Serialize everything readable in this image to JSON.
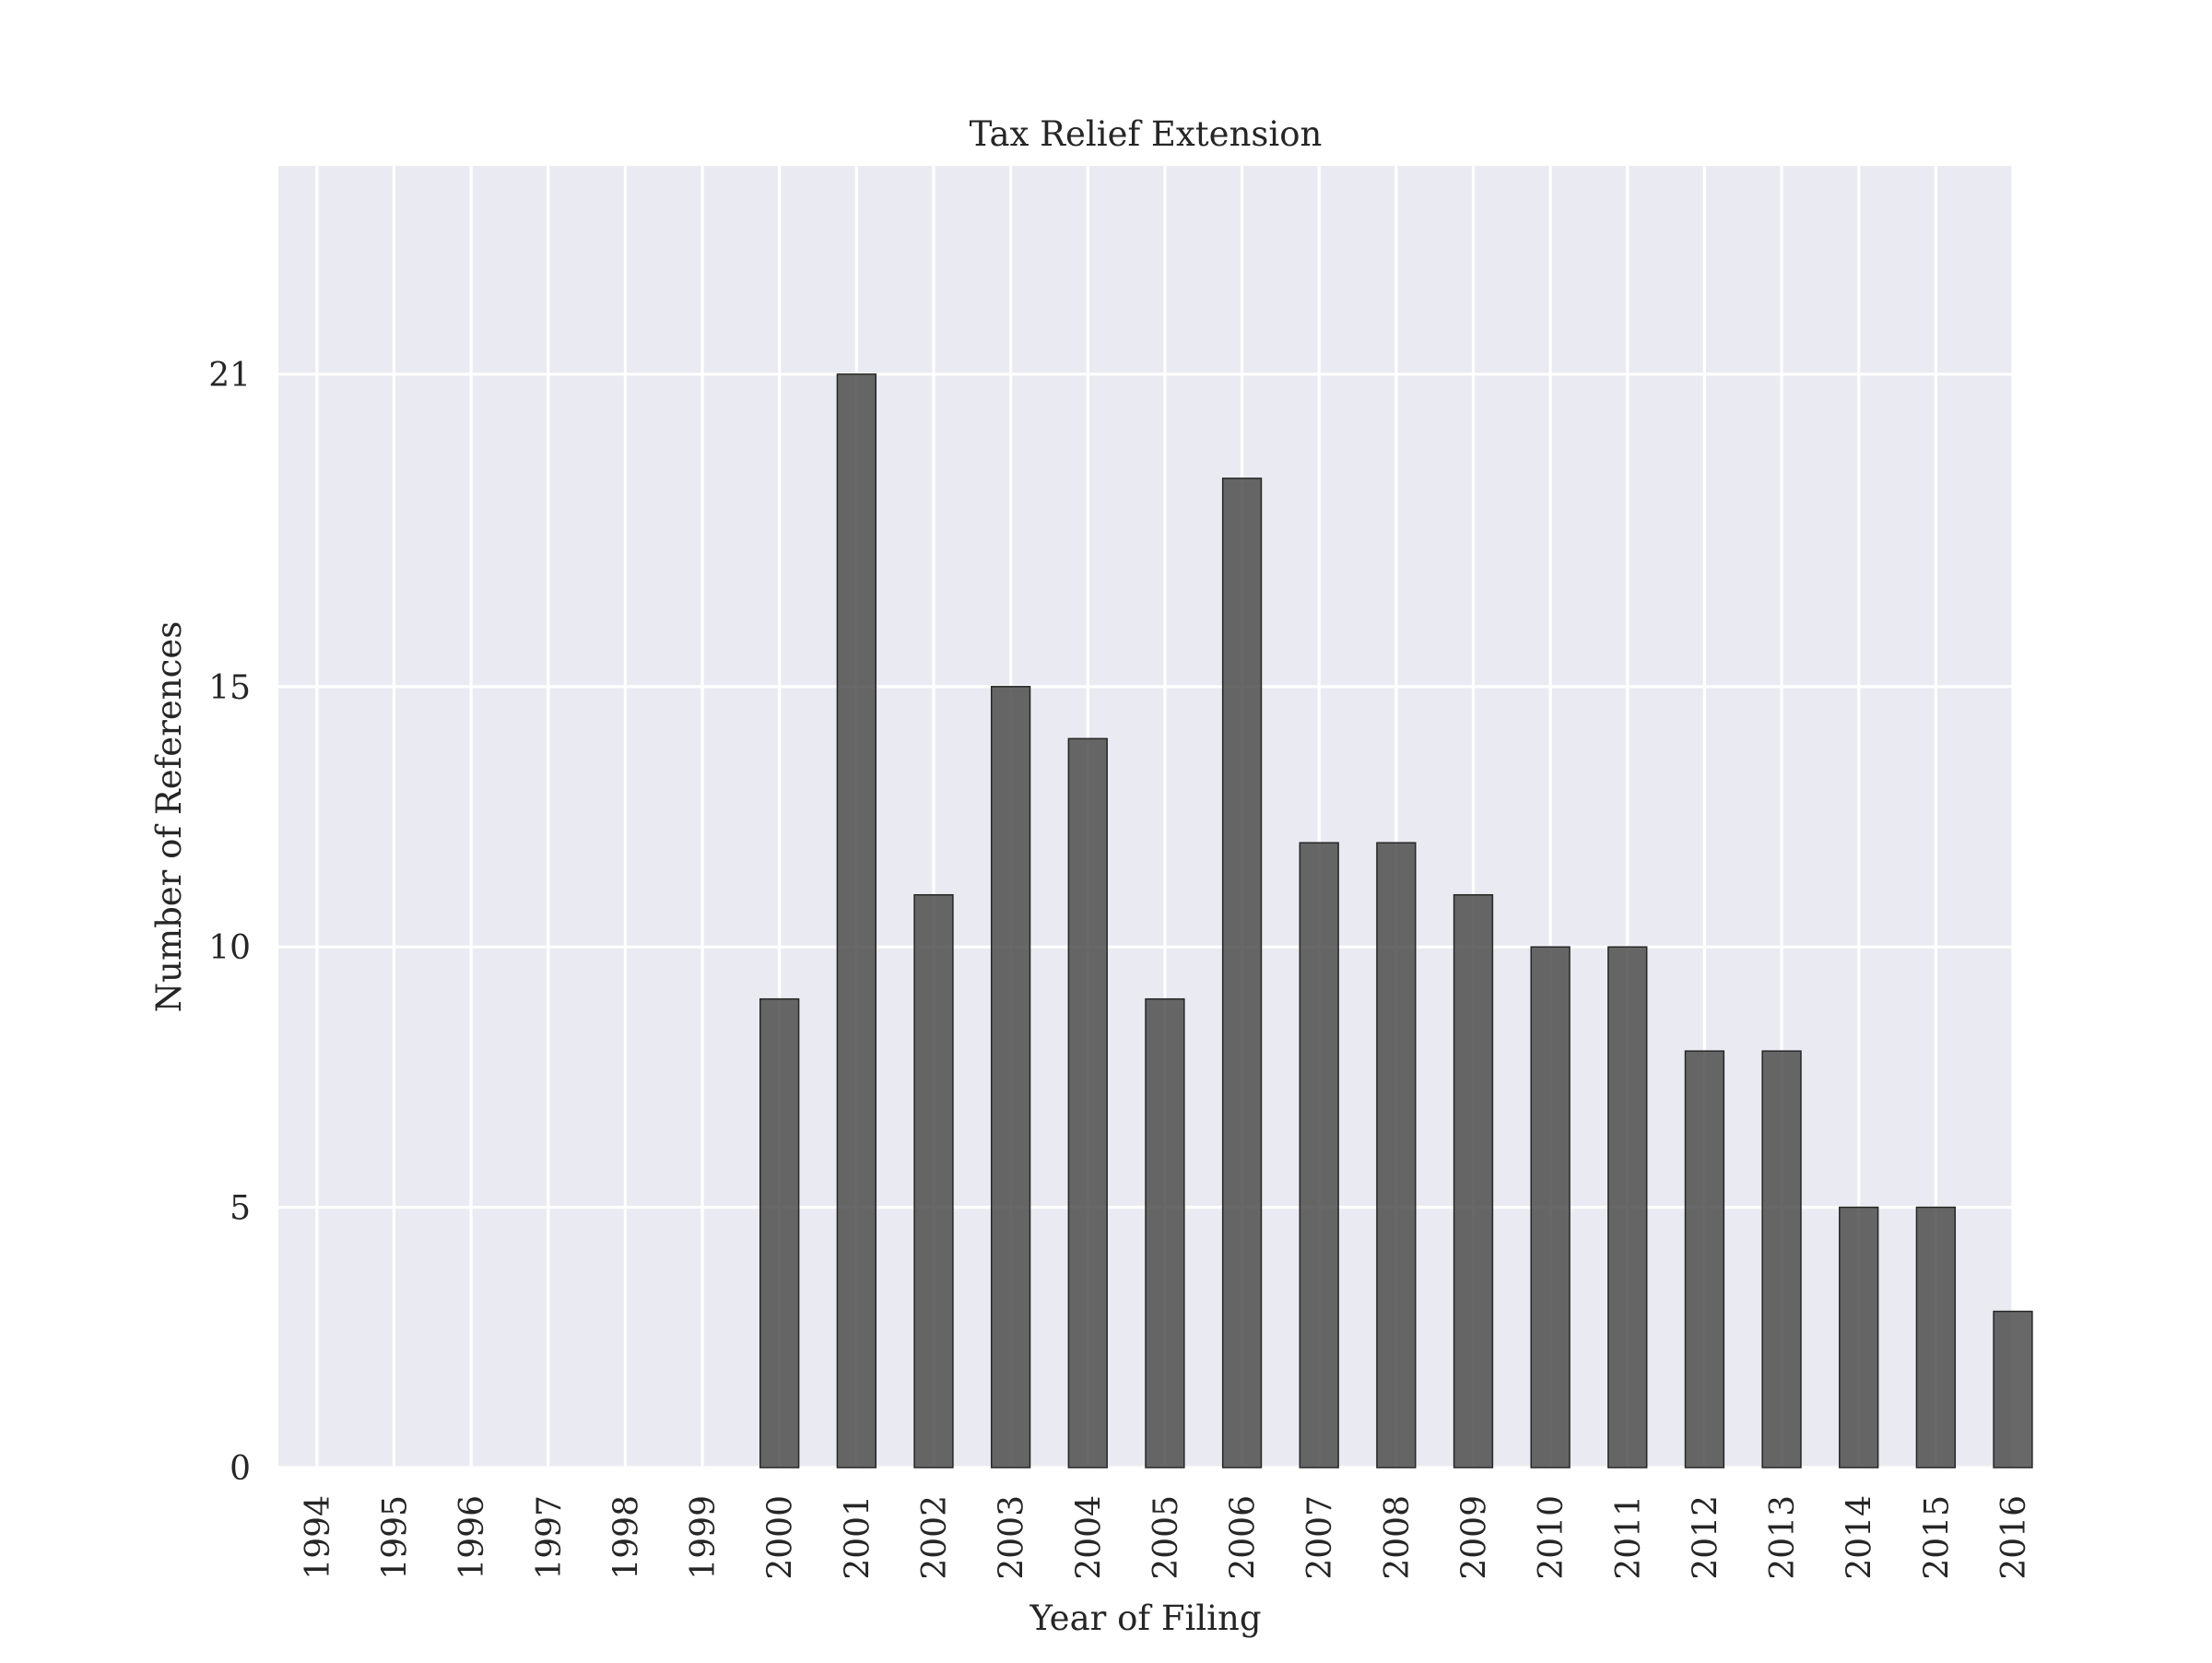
{
  "chart_data": {
    "type": "bar",
    "title": "Tax Relief Extension",
    "xlabel": "Year of Filing",
    "ylabel": "Number of References",
    "categories": [
      "1994",
      "1995",
      "1996",
      "1997",
      "1998",
      "1999",
      "2000",
      "2001",
      "2002",
      "2003",
      "2004",
      "2005",
      "2006",
      "2007",
      "2008",
      "2009",
      "2010",
      "2011",
      "2012",
      "2013",
      "2014",
      "2015",
      "2016"
    ],
    "values": [
      0,
      0,
      0,
      0,
      0,
      0,
      9,
      21,
      11,
      15,
      14,
      9,
      19,
      12,
      12,
      11,
      10,
      10,
      8,
      8,
      5,
      5,
      3
    ],
    "yticks": [
      0,
      5,
      10,
      15,
      21
    ],
    "ylim": [
      0,
      25
    ],
    "grid": true,
    "colors": {
      "bar": "#4d4d4d",
      "bar_edge": "#262626",
      "plot_background": "#eaeaf2",
      "grid": "#ffffff"
    }
  }
}
